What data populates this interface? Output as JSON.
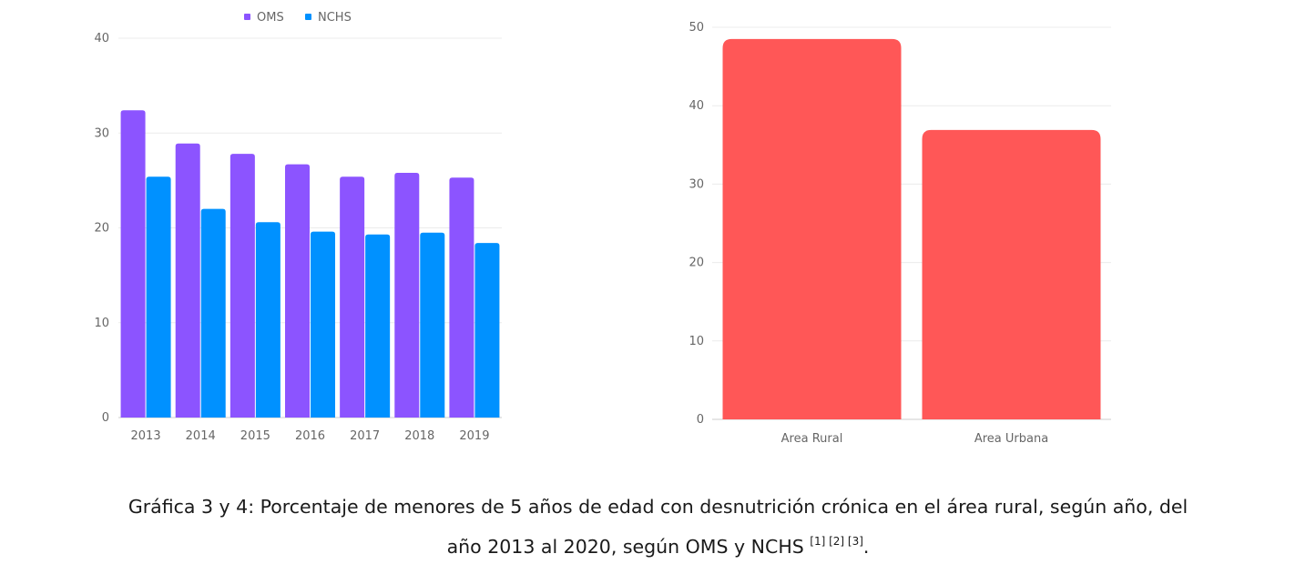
{
  "chart_data": [
    {
      "type": "bar",
      "categories": [
        "2013",
        "2014",
        "2015",
        "2016",
        "2017",
        "2018",
        "2019"
      ],
      "series": [
        {
          "name": "OMS",
          "values": [
            32.4,
            28.9,
            27.8,
            26.7,
            25.4,
            25.8,
            25.3
          ]
        },
        {
          "name": "NCHS",
          "values": [
            25.4,
            22.0,
            20.6,
            19.6,
            19.3,
            19.5,
            18.4
          ]
        }
      ],
      "ylim": [
        0,
        40
      ],
      "yticks": [
        "0",
        "10",
        "20",
        "30",
        "40"
      ],
      "grid": true,
      "legend": "top-center",
      "colors": [
        "#8c54ff",
        "#0091ff"
      ]
    },
    {
      "type": "bar",
      "categories": [
        "Area Rural",
        "Area Urbana"
      ],
      "values": [
        48.5,
        36.9
      ],
      "ylim": [
        0,
        50
      ],
      "yticks": [
        "0",
        "10",
        "20",
        "30",
        "40",
        "50"
      ],
      "grid": true,
      "colors": [
        "#ff5757"
      ]
    }
  ],
  "caption": {
    "line1": "Gráfica 3 y 4: Porcentaje de menores de 5 años de edad con desnutrición crónica en el área rural, según año, del",
    "line2": "año 2013 al 2020, según OMS y NCHS ",
    "refs": "[1] [2] [3]",
    "end": "."
  }
}
